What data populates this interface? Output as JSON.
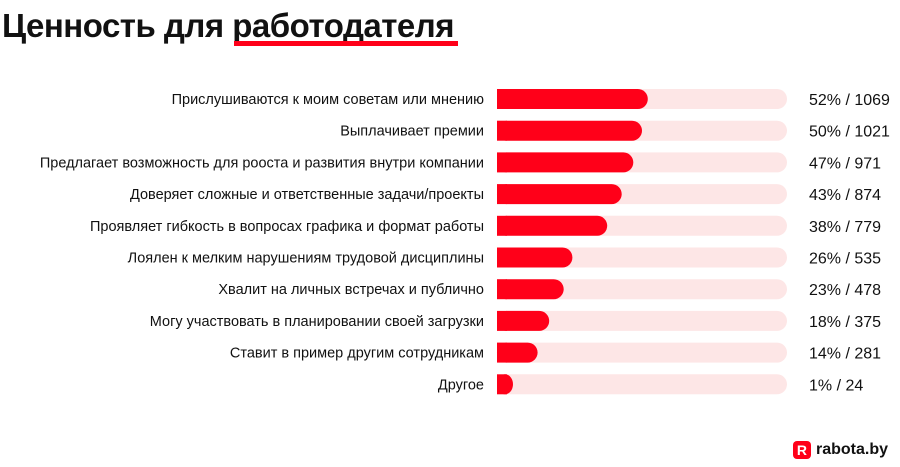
{
  "title_prefix": "Ценность для ",
  "title_highlight": "работодателя",
  "logo": {
    "mark": "R",
    "text": "rabota.by"
  },
  "colors": {
    "bar": "#ff0019",
    "track": "#fde6e6",
    "accent": "#ff0019"
  },
  "chart_data": {
    "type": "bar",
    "orientation": "horizontal",
    "categories": [
      "Прислушиваются к моим советам или мнению",
      "Выплачивает премии",
      "Предлагает возможность для рооста и развития внутри компании",
      "Доверяет сложные и ответственные задачи/проекты",
      "Проявляет гибкость в вопросах графика и формат работы",
      "Лоялен к мелким нарушениям трудовой дисциплины",
      "Хвалит на личных встречах и публично",
      "Могу участвовать в планировании своей загрузки",
      "Ставит в пример другим сотрудникам",
      "Другое"
    ],
    "values": [
      52,
      50,
      47,
      43,
      38,
      26,
      23,
      18,
      14,
      1
    ],
    "counts": [
      1069,
      1021,
      971,
      874,
      779,
      535,
      478,
      375,
      281,
      24
    ],
    "labels": [
      "52% / 1069",
      "50% / 1021",
      "47% / 971",
      "43% / 874",
      "38% / 779",
      "26% / 535",
      "23% / 478",
      "18% / 375",
      "14% / 281",
      "1% / 24"
    ],
    "xlim": [
      0,
      100
    ],
    "grid": false,
    "legend": "none"
  }
}
